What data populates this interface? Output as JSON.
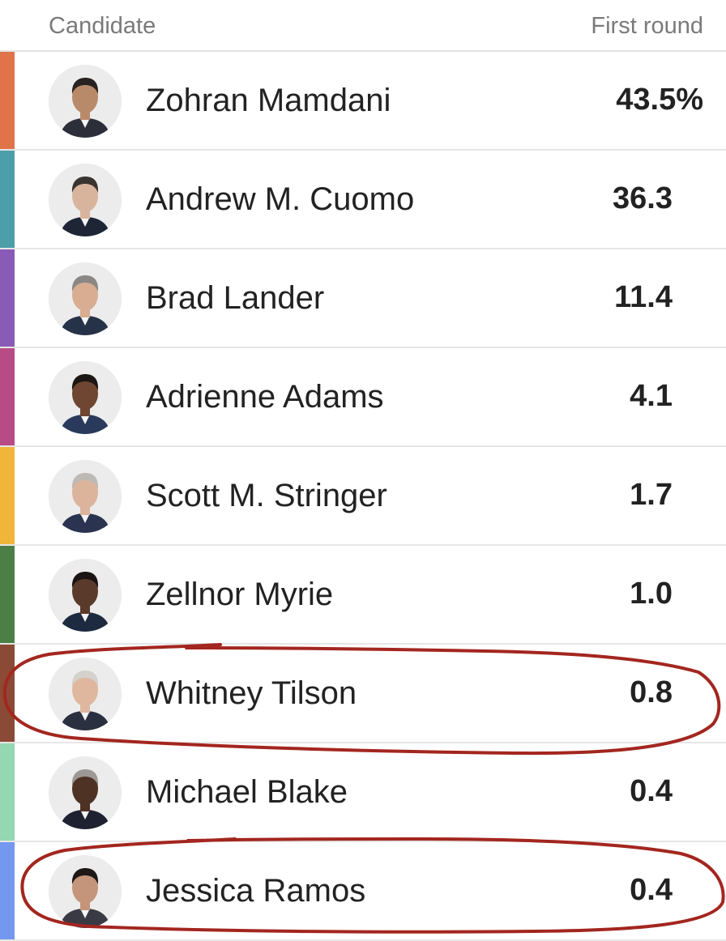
{
  "header": {
    "candidate_label": "Candidate",
    "round_label": "First round"
  },
  "candidates": [
    {
      "name": "Zohran Mamdani",
      "value": "43.5%",
      "color": "#e0734a",
      "skin": "#b98a6a",
      "hair": "#2a2220",
      "suit": "#2c2f3a"
    },
    {
      "name": "Andrew M. Cuomo",
      "value": "36.3",
      "color": "#4c9ea9",
      "skin": "#d9b49c",
      "hair": "#3a3430",
      "suit": "#1e2636"
    },
    {
      "name": "Brad Lander",
      "value": "11.4",
      "color": "#8a5ab7",
      "skin": "#d8ad92",
      "hair": "#8a8784",
      "suit": "#263248"
    },
    {
      "name": "Adrienne Adams",
      "value": "4.1",
      "color": "#b84a86",
      "skin": "#6e4632",
      "hair": "#1c1614",
      "suit": "#2a3a5c"
    },
    {
      "name": "Scott M. Stringer",
      "value": "1.7",
      "color": "#f1b53a",
      "skin": "#dcb49c",
      "hair": "#bdbab6",
      "suit": "#2a3450"
    },
    {
      "name": "Zellnor Myrie",
      "value": "1.0",
      "color": "#4c7f46",
      "skin": "#5a3a2a",
      "hair": "#1a1412",
      "suit": "#1e2a40"
    },
    {
      "name": "Whitney Tilson",
      "value": "0.8",
      "color": "#8b4a35",
      "skin": "#dfb79e",
      "hair": "#d4d1cc",
      "suit": "#2a3040"
    },
    {
      "name": "Michael Blake",
      "value": "0.4",
      "color": "#95d7b0",
      "skin": "#4e3224",
      "hair": "#9c9894",
      "suit": "#1e2230"
    },
    {
      "name": "Jessica Ramos",
      "value": "0.4",
      "color": "#7497ef",
      "skin": "#c4957a",
      "hair": "#1e1816",
      "suit": "#3a3a44"
    }
  ],
  "annotation_color": "#a3261f"
}
